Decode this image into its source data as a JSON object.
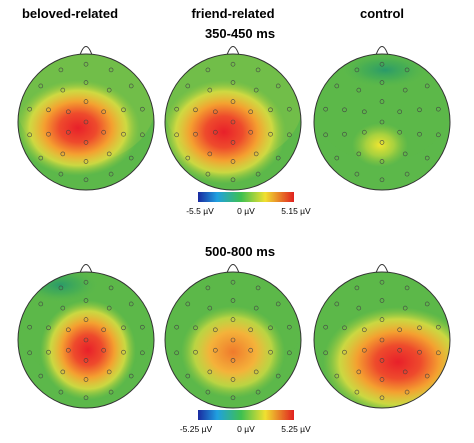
{
  "columns": [
    "beloved-related",
    "friend-related",
    "control"
  ],
  "windows": [
    {
      "title": "350-450 ms",
      "scale": [
        "-5.5 µV",
        "0 µV",
        "5.15 µV"
      ]
    },
    {
      "title": "500-800 ms",
      "scale": [
        "-5.25 µV",
        "0 µV",
        "5.25 µV"
      ]
    }
  ]
}
